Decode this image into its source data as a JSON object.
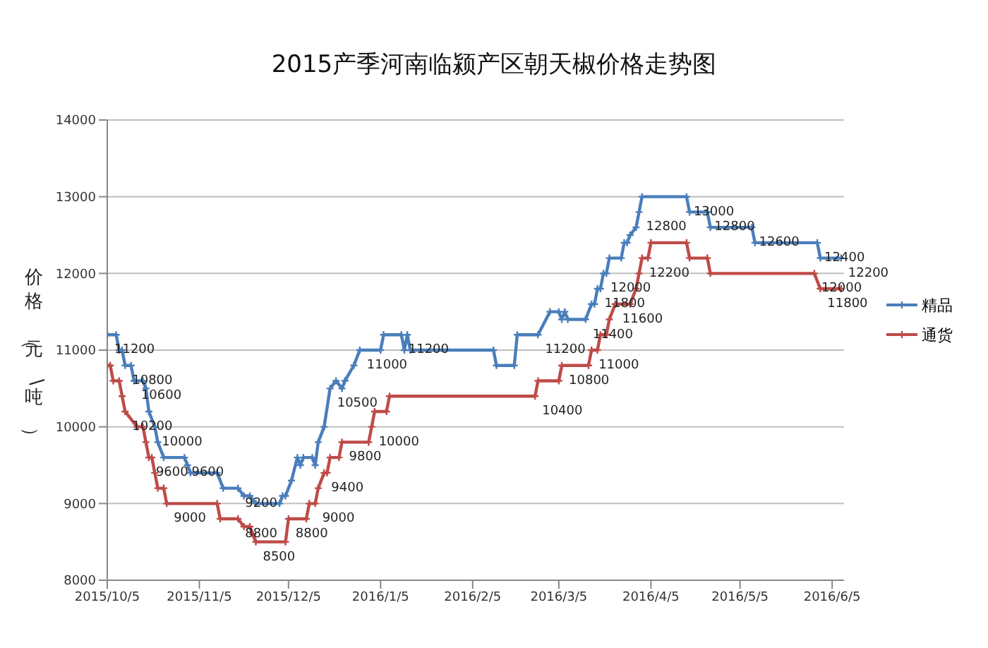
{
  "chart_data": {
    "type": "line",
    "title": "2015产季河南临颍产区朝天椒价格走势图",
    "ylabel": "价格（元\\吨）",
    "xlim": [
      "2015-10-05",
      "2016-06-09"
    ],
    "xticks": [
      {
        "value": "2015-10-05",
        "label": "2015/10/5"
      },
      {
        "value": "2015-11-05",
        "label": "2015/11/5"
      },
      {
        "value": "2015-12-05",
        "label": "2015/12/5"
      },
      {
        "value": "2016-01-05",
        "label": "2016/1/5"
      },
      {
        "value": "2016-02-05",
        "label": "2016/2/5"
      },
      {
        "value": "2016-03-05",
        "label": "2016/3/5"
      },
      {
        "value": "2016-04-05",
        "label": "2016/4/5"
      },
      {
        "value": "2016-05-05",
        "label": "2016/5/5"
      },
      {
        "value": "2016-06-05",
        "label": "2016/6/5"
      }
    ],
    "ylim": [
      8000,
      14000
    ],
    "yticks": [
      8000,
      9000,
      10000,
      11000,
      12000,
      13000,
      14000
    ],
    "grid": "y",
    "legend": "right",
    "marker": "cross",
    "line_style": "solid",
    "series": [
      {
        "name": "精品",
        "color": "#4a7ebb",
        "x": [
          "2015-10-05",
          "2015-10-08",
          "2015-10-09",
          "2015-10-10",
          "2015-10-11",
          "2015-10-13",
          "2015-10-14",
          "2015-10-17",
          "2015-10-18",
          "2015-10-19",
          "2015-10-21",
          "2015-10-22",
          "2015-10-24",
          "2015-10-31",
          "2015-11-01",
          "2015-11-02",
          "2015-11-11",
          "2015-11-13",
          "2015-11-18",
          "2015-11-20",
          "2015-11-22",
          "2015-11-24",
          "2015-12-02",
          "2015-12-03",
          "2015-12-04",
          "2015-12-06",
          "2015-12-08",
          "2015-12-09",
          "2015-12-10",
          "2015-12-13",
          "2015-12-14",
          "2015-12-15",
          "2015-12-17",
          "2015-12-19",
          "2015-12-21",
          "2015-12-23",
          "2015-12-24",
          "2015-12-27",
          "2015-12-29",
          "2016-01-05",
          "2016-01-06",
          "2016-01-12",
          "2016-01-13",
          "2016-01-14",
          "2016-01-15",
          "2016-02-12",
          "2016-02-13",
          "2016-02-19",
          "2016-02-20",
          "2016-02-27",
          "2016-03-02",
          "2016-03-05",
          "2016-03-06",
          "2016-03-07",
          "2016-03-08",
          "2016-03-14",
          "2016-03-16",
          "2016-03-17",
          "2016-03-18",
          "2016-03-19",
          "2016-03-20",
          "2016-03-21",
          "2016-03-22",
          "2016-03-26",
          "2016-03-27",
          "2016-03-28",
          "2016-03-29",
          "2016-03-31",
          "2016-04-01",
          "2016-04-02",
          "2016-04-17",
          "2016-04-18",
          "2016-04-24",
          "2016-04-25",
          "2016-05-09",
          "2016-05-10",
          "2016-05-31",
          "2016-06-01",
          "2016-06-08"
        ],
        "values": [
          11200,
          11200,
          11000,
          11000,
          10800,
          10800,
          10600,
          10600,
          10500,
          10200,
          10000,
          9800,
          9600,
          9600,
          9500,
          9400,
          9400,
          9200,
          9200,
          9100,
          9100,
          9000,
          9000,
          9100,
          9100,
          9300,
          9600,
          9500,
          9600,
          9600,
          9500,
          9800,
          10000,
          10500,
          10600,
          10500,
          10600,
          10800,
          11000,
          11000,
          11200,
          11200,
          11000,
          11200,
          11000,
          11000,
          10800,
          10800,
          11200,
          11200,
          11500,
          11500,
          11400,
          11500,
          11400,
          11400,
          11600,
          11600,
          11800,
          11800,
          12000,
          12000,
          12200,
          12200,
          12400,
          12400,
          12500,
          12600,
          12800,
          13000,
          13000,
          12800,
          12800,
          12600,
          12600,
          12400,
          12400,
          12200,
          12200
        ],
        "value_labels": [
          "11200",
          null,
          null,
          null,
          "10800",
          null,
          "10600",
          null,
          null,
          null,
          "10000",
          null,
          null,
          "9600",
          null,
          null,
          null,
          null,
          "9200",
          null,
          null,
          null,
          null,
          null,
          null,
          null,
          null,
          null,
          null,
          null,
          null,
          null,
          null,
          "10500",
          null,
          null,
          null,
          null,
          "11000",
          null,
          null,
          "11200",
          null,
          null,
          null,
          null,
          null,
          null,
          null,
          "11200",
          null,
          null,
          null,
          null,
          null,
          "11400",
          null,
          null,
          "11800",
          null,
          "12000",
          null,
          null,
          null,
          null,
          null,
          null,
          null,
          "12800",
          null,
          "13000",
          null,
          "12800",
          null,
          "12600",
          null,
          "12400",
          null,
          "12200"
        ]
      },
      {
        "name": "通货",
        "color": "#be4b48",
        "x": [
          "2015-10-05",
          "2015-10-06",
          "2015-10-07",
          "2015-10-09",
          "2015-10-10",
          "2015-10-11",
          "2015-10-15",
          "2015-10-17",
          "2015-10-18",
          "2015-10-19",
          "2015-10-20",
          "2015-10-21",
          "2015-10-22",
          "2015-10-24",
          "2015-10-25",
          "2015-11-11",
          "2015-11-12",
          "2015-11-18",
          "2015-11-20",
          "2015-11-22",
          "2015-11-23",
          "2015-11-24",
          "2015-12-04",
          "2015-12-05",
          "2015-12-11",
          "2015-12-12",
          "2015-12-14",
          "2015-12-15",
          "2015-12-17",
          "2015-12-18",
          "2015-12-19",
          "2015-12-22",
          "2015-12-23",
          "2016-01-01",
          "2016-01-02",
          "2016-01-03",
          "2016-01-07",
          "2016-01-08",
          "2016-02-26",
          "2016-02-27",
          "2016-03-05",
          "2016-03-06",
          "2016-03-15",
          "2016-03-16",
          "2016-03-18",
          "2016-03-19",
          "2016-03-21",
          "2016-03-22",
          "2016-03-24",
          "2016-03-29",
          "2016-03-31",
          "2016-04-01",
          "2016-04-02",
          "2016-04-04",
          "2016-04-05",
          "2016-04-17",
          "2016-04-18",
          "2016-04-24",
          "2016-04-25",
          "2016-05-30",
          "2016-06-01",
          "2016-06-08"
        ],
        "values": [
          10800,
          10800,
          10600,
          10600,
          10400,
          10200,
          10000,
          10000,
          9800,
          9600,
          9600,
          9400,
          9200,
          9200,
          9000,
          9000,
          8800,
          8800,
          8700,
          8700,
          8600,
          8500,
          8500,
          8800,
          8800,
          9000,
          9000,
          9200,
          9400,
          9400,
          9600,
          9600,
          9800,
          9800,
          10000,
          10200,
          10200,
          10400,
          10400,
          10600,
          10600,
          10800,
          10800,
          11000,
          11000,
          11200,
          11200,
          11400,
          11600,
          11600,
          11800,
          12000,
          12200,
          12200,
          12400,
          12400,
          12200,
          12200,
          12000,
          12000,
          11800,
          11800
        ],
        "value_labels": [
          null,
          null,
          null,
          null,
          null,
          "10200",
          null,
          null,
          null,
          "9600",
          null,
          null,
          null,
          null,
          "9000",
          null,
          null,
          "8800",
          null,
          null,
          null,
          "8500",
          null,
          "8800",
          null,
          null,
          "9000",
          null,
          "9400",
          null,
          null,
          null,
          "9800",
          null,
          "10000",
          null,
          null,
          null,
          "10400",
          null,
          null,
          "10800",
          null,
          "11000",
          null,
          null,
          null,
          null,
          "11600",
          null,
          null,
          null,
          "12200",
          null,
          null,
          null,
          null,
          null,
          null,
          "12000",
          "11800",
          null
        ]
      }
    ]
  }
}
